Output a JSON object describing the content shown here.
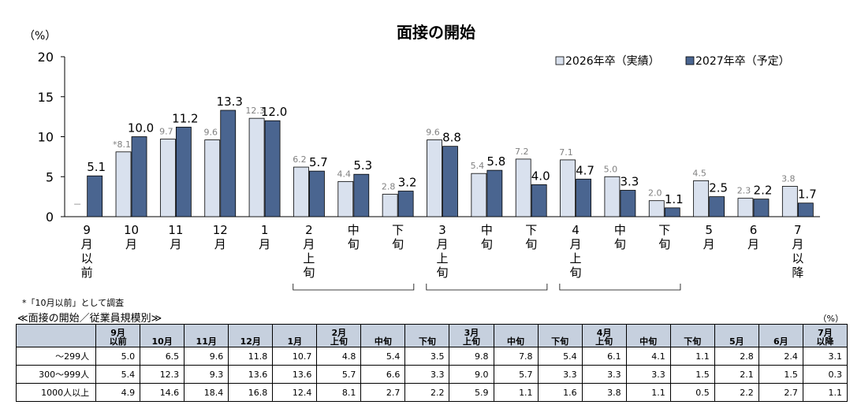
{
  "chart_data": {
    "type": "bar",
    "title": "面接の開始",
    "ylabel": "（%）",
    "ylim": [
      0,
      20
    ],
    "yticks": [
      0,
      5,
      10,
      15,
      20
    ],
    "categories": [
      "9\n月\n以\n前",
      "10\n月",
      "11\n月",
      "12\n月",
      "1\n月",
      "2\n月\n上\n旬",
      "中\n旬",
      "下\n旬",
      "3\n月\n上\n旬",
      "中\n旬",
      "下\n旬",
      "4\n月\n上\n旬",
      "中\n旬",
      "下\n旬",
      "5\n月",
      "6\n月",
      "7\n月\n以\n降"
    ],
    "series": [
      {
        "name": "2026年卒（実績）",
        "color": "#d9e1ee",
        "values": [
          null,
          8.1,
          9.7,
          9.6,
          12.3,
          6.2,
          4.4,
          2.8,
          9.6,
          5.4,
          7.2,
          7.1,
          5.0,
          2.0,
          4.5,
          2.3,
          3.8
        ],
        "labels": [
          "－",
          "*8.1",
          "9.7",
          "9.6",
          "12.3",
          "6.2",
          "4.4",
          "2.8",
          "9.6",
          "5.4",
          "7.2",
          "7.1",
          "5.0",
          "2.0",
          "4.5",
          "2.3",
          "3.8"
        ]
      },
      {
        "name": "2027年卒（予定）",
        "color": "#4a6590",
        "values": [
          5.1,
          10.0,
          11.2,
          13.3,
          12.0,
          5.7,
          5.3,
          3.2,
          8.8,
          5.8,
          4.0,
          4.7,
          3.3,
          1.1,
          2.5,
          2.2,
          1.7
        ],
        "labels": [
          "5.1",
          "10.0",
          "11.2",
          "13.3",
          "12.0",
          "5.7",
          "5.3",
          "3.2",
          "8.8",
          "5.8",
          "4.0",
          "4.7",
          "3.3",
          "1.1",
          "2.5",
          "2.2",
          "1.7"
        ]
      }
    ],
    "legend": "top-right",
    "brackets": [
      [
        5,
        7
      ],
      [
        8,
        10
      ],
      [
        11,
        13
      ]
    ]
  },
  "footnote": "*「10月以前」として調査",
  "table": {
    "title": "≪面接の開始／従業員規模別≫",
    "unit": "（%）",
    "headers": [
      "",
      "9月\n以前",
      "10月",
      "11月",
      "12月",
      "1月",
      "2月\n上旬",
      "中旬",
      "下旬",
      "3月\n上旬",
      "中旬",
      "下旬",
      "4月\n上旬",
      "中旬",
      "下旬",
      "5月",
      "6月",
      "7月\n以降"
    ],
    "rows": [
      {
        "label": "～299人",
        "values": [
          "5.0",
          "6.5",
          "9.6",
          "11.8",
          "10.7",
          "4.8",
          "5.4",
          "3.5",
          "9.8",
          "7.8",
          "5.4",
          "6.1",
          "4.1",
          "1.1",
          "2.8",
          "2.4",
          "3.1"
        ]
      },
      {
        "label": "300～999人",
        "values": [
          "5.4",
          "12.3",
          "9.3",
          "13.6",
          "13.6",
          "5.7",
          "6.6",
          "3.3",
          "9.0",
          "5.7",
          "3.3",
          "3.3",
          "3.3",
          "1.5",
          "2.1",
          "1.5",
          "0.3"
        ]
      },
      {
        "label": "1000人以上",
        "values": [
          "4.9",
          "14.6",
          "18.4",
          "16.8",
          "12.4",
          "8.1",
          "2.7",
          "2.2",
          "5.9",
          "1.1",
          "1.6",
          "3.8",
          "1.1",
          "0.5",
          "2.2",
          "2.7",
          "1.1"
        ]
      }
    ]
  }
}
